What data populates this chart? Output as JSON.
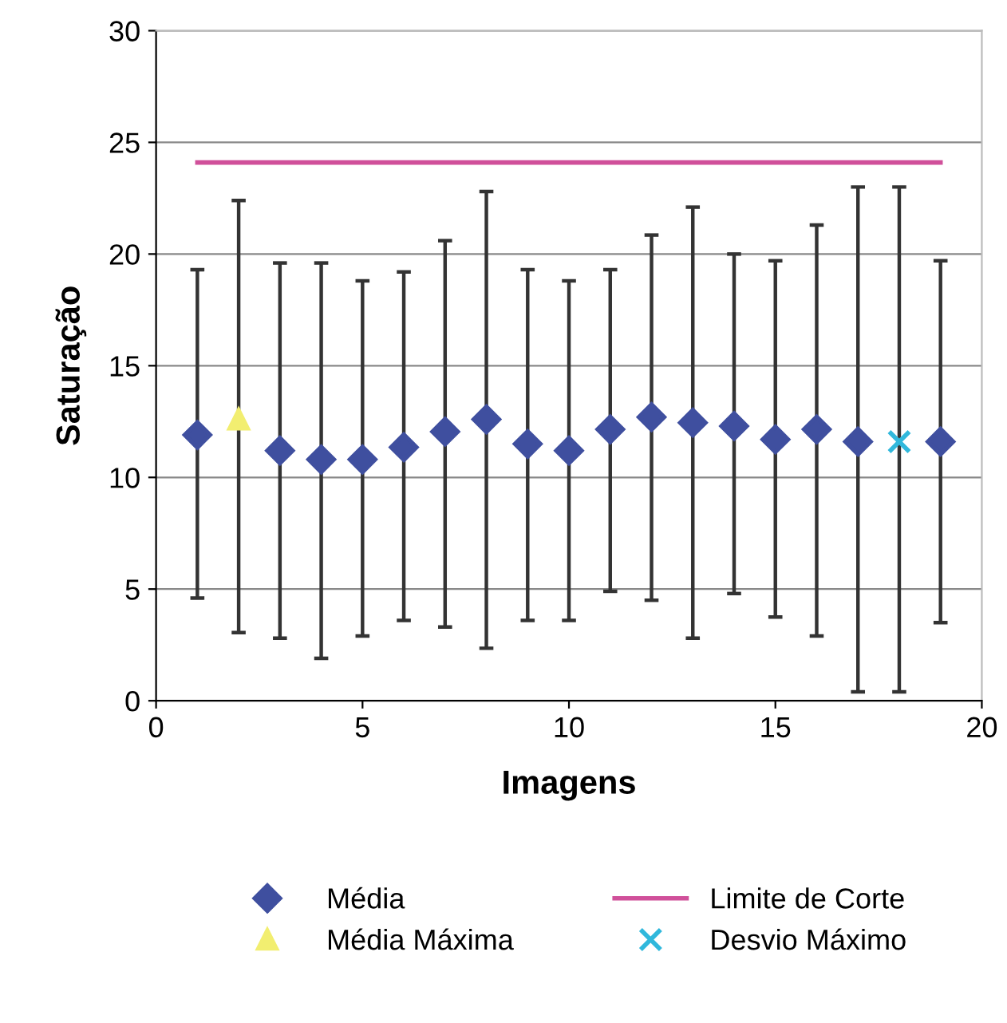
{
  "chart_data": {
    "type": "scatter",
    "xlabel": "Imagens",
    "ylabel": "Saturação",
    "xlim": [
      0,
      20
    ],
    "xticks": [
      0,
      5,
      10,
      15,
      20
    ],
    "ylim": [
      0,
      30
    ],
    "yticks": [
      0,
      5,
      10,
      15,
      20,
      25,
      30
    ],
    "grid": "y",
    "legend": "bottom",
    "series": [
      {
        "name": "Média",
        "marker": "diamond",
        "color": "#3f4f9f",
        "x": [
          1,
          2,
          3,
          4,
          5,
          6,
          7,
          8,
          9,
          10,
          11,
          12,
          13,
          14,
          15,
          16,
          17,
          18,
          19
        ],
        "values": [
          11.9,
          null,
          11.2,
          10.8,
          10.8,
          11.35,
          12.05,
          12.6,
          11.5,
          11.2,
          12.15,
          12.7,
          12.45,
          12.3,
          11.7,
          12.15,
          11.6,
          null,
          11.6
        ],
        "errors": [
          [
            4.6,
            19.3
          ],
          null,
          [
            2.8,
            19.6
          ],
          [
            1.9,
            19.6
          ],
          [
            2.9,
            18.8
          ],
          [
            3.6,
            19.2
          ],
          [
            3.3,
            20.6
          ],
          [
            2.35,
            22.8
          ],
          [
            3.6,
            19.3
          ],
          [
            3.6,
            18.8
          ],
          [
            4.9,
            19.3
          ],
          [
            4.5,
            20.85
          ],
          [
            2.8,
            22.1
          ],
          [
            4.8,
            20.0
          ],
          [
            3.75,
            19.7
          ],
          [
            2.9,
            21.3
          ],
          [
            0.4,
            23.0
          ],
          null,
          [
            3.5,
            19.7
          ]
        ]
      },
      {
        "name": "Média Máxima",
        "marker": "triangle",
        "color": "#f2ee70",
        "x": [
          2
        ],
        "values": [
          12.6
        ],
        "errors": [
          [
            3.05,
            22.4
          ]
        ]
      },
      {
        "name": "Limite de Corte",
        "type": "line",
        "marker": "none",
        "color": "#d0509a",
        "x": [
          1,
          19
        ],
        "values": [
          24.1,
          24.1
        ]
      },
      {
        "name": "Desvio Máximo",
        "marker": "cross",
        "color": "#30b8dc",
        "x": [
          18
        ],
        "values": [
          11.6
        ],
        "errors": [
          [
            0.4,
            23.0
          ]
        ]
      }
    ]
  }
}
